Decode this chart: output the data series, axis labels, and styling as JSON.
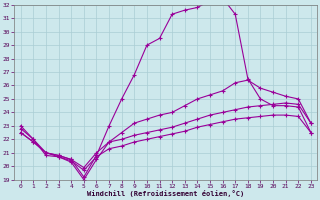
{
  "xlabel": "Windchill (Refroidissement éolien,°C)",
  "background_color": "#cde8ec",
  "grid_color": "#aacdd5",
  "line_color": "#990099",
  "xlim": [
    -0.5,
    23.5
  ],
  "ylim": [
    19,
    32
  ],
  "xticks": [
    0,
    1,
    2,
    3,
    4,
    5,
    6,
    7,
    8,
    9,
    10,
    11,
    12,
    13,
    14,
    15,
    16,
    17,
    18,
    19,
    20,
    21,
    22,
    23
  ],
  "yticks": [
    19,
    20,
    21,
    22,
    23,
    24,
    25,
    26,
    27,
    28,
    29,
    30,
    31,
    32
  ],
  "lines": [
    {
      "x": [
        0,
        1,
        2,
        3,
        4,
        5,
        6,
        7,
        8,
        9,
        10,
        11,
        12,
        13,
        14,
        15,
        16,
        17,
        18,
        19,
        20,
        21,
        22,
        23
      ],
      "y": [
        23.0,
        22.0,
        21.0,
        20.8,
        20.5,
        19.2,
        20.8,
        23.0,
        25.0,
        26.8,
        29.0,
        29.5,
        31.3,
        31.6,
        31.8,
        32.3,
        32.5,
        31.3,
        26.5,
        25.0,
        24.5,
        24.5,
        24.4,
        22.5
      ]
    },
    {
      "x": [
        0,
        1,
        2,
        3,
        4,
        5,
        6,
        7,
        8,
        9,
        10,
        11,
        12,
        13,
        14,
        15,
        16,
        17,
        18,
        19,
        20,
        21,
        22,
        23
      ],
      "y": [
        22.8,
        22.0,
        20.8,
        20.7,
        20.3,
        19.0,
        20.5,
        21.8,
        22.5,
        23.2,
        23.5,
        23.8,
        24.0,
        24.5,
        25.0,
        25.3,
        25.6,
        26.2,
        26.4,
        25.8,
        25.5,
        25.2,
        25.0,
        23.2
      ]
    },
    {
      "x": [
        0,
        1,
        2,
        3,
        4,
        5,
        6,
        7,
        8,
        9,
        10,
        11,
        12,
        13,
        14,
        15,
        16,
        17,
        18,
        19,
        20,
        21,
        22,
        23
      ],
      "y": [
        22.5,
        21.8,
        21.0,
        20.8,
        20.5,
        19.9,
        21.0,
        21.8,
        22.0,
        22.3,
        22.5,
        22.7,
        22.9,
        23.2,
        23.5,
        23.8,
        24.0,
        24.2,
        24.4,
        24.5,
        24.6,
        24.7,
        24.6,
        23.2
      ]
    },
    {
      "x": [
        0,
        1,
        2,
        3,
        4,
        5,
        6,
        7,
        8,
        9,
        10,
        11,
        12,
        13,
        14,
        15,
        16,
        17,
        18,
        19,
        20,
        21,
        22,
        23
      ],
      "y": [
        22.5,
        21.8,
        21.0,
        20.7,
        20.4,
        19.7,
        20.7,
        21.3,
        21.5,
        21.8,
        22.0,
        22.2,
        22.4,
        22.6,
        22.9,
        23.1,
        23.3,
        23.5,
        23.6,
        23.7,
        23.8,
        23.8,
        23.7,
        22.5
      ]
    }
  ]
}
